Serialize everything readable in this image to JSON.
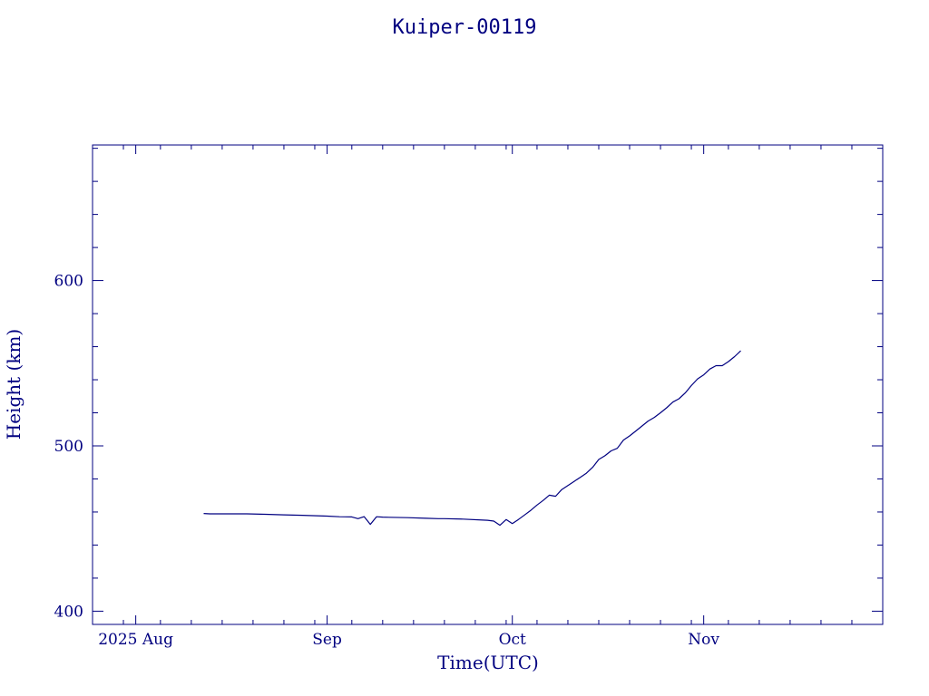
{
  "colors": {
    "ink": "#000080",
    "background": "#ffffff"
  },
  "chart_data": {
    "type": "line",
    "title": "Kuiper-00119",
    "xlabel": "Time(UTC)",
    "ylabel": "Height (km)",
    "x_is_date": true,
    "xlim": [
      "2025-07-25",
      "2025-11-30"
    ],
    "ylim": [
      392,
      682
    ],
    "x_tick_labels": [
      {
        "x": "2025-08-01",
        "label": "2025 Aug"
      },
      {
        "x": "2025-09-01",
        "label": "Sep"
      },
      {
        "x": "2025-10-01",
        "label": "Oct"
      },
      {
        "x": "2025-11-01",
        "label": "Nov"
      }
    ],
    "y_tick_labels": [
      {
        "y": 400,
        "label": "400"
      },
      {
        "y": 500,
        "label": "500"
      },
      {
        "y": 600,
        "label": "600"
      }
    ],
    "y_minor_step": 20,
    "grid": false,
    "series": [
      {
        "x": [
          "2025-08-12",
          "2025-08-13",
          "2025-08-15",
          "2025-08-19",
          "2025-08-22",
          "2025-08-25",
          "2025-08-28",
          "2025-09-01",
          "2025-09-03",
          "2025-09-05",
          "2025-09-06",
          "2025-09-07",
          "2025-09-08",
          "2025-09-09",
          "2025-09-10",
          "2025-09-11",
          "2025-09-14",
          "2025-09-17",
          "2025-09-19",
          "2025-09-20",
          "2025-09-23",
          "2025-09-27",
          "2025-09-28",
          "2025-09-29",
          "2025-09-30",
          "2025-10-01",
          "2025-10-02",
          "2025-10-03",
          "2025-10-04",
          "2025-10-05",
          "2025-10-06",
          "2025-10-07",
          "2025-10-08",
          "2025-10-09",
          "2025-10-10",
          "2025-10-11",
          "2025-10-12",
          "2025-10-13",
          "2025-10-14",
          "2025-10-15",
          "2025-10-16",
          "2025-10-17",
          "2025-10-18",
          "2025-10-19",
          "2025-10-20",
          "2025-10-21",
          "2025-10-22",
          "2025-10-23",
          "2025-10-24",
          "2025-10-25",
          "2025-10-26",
          "2025-10-27",
          "2025-10-28",
          "2025-10-29",
          "2025-10-30",
          "2025-10-31",
          "2025-11-01",
          "2025-11-02",
          "2025-11-03",
          "2025-11-04",
          "2025-11-05",
          "2025-11-06",
          "2025-11-07"
        ],
        "y": [
          459.1,
          458.9,
          458.9,
          458.9,
          458.6,
          458.3,
          458.0,
          457.5,
          457.1,
          457.0,
          456.0,
          457.2,
          452.5,
          457.1,
          456.9,
          456.8,
          456.6,
          456.2,
          456.0,
          456.0,
          455.7,
          455.0,
          454.5,
          452.0,
          455.4,
          453.0,
          455.5,
          458.2,
          461.0,
          464.2,
          467.0,
          470.2,
          469.5,
          473.6,
          476.0,
          478.5,
          481.0,
          483.5,
          487.0,
          491.8,
          494.0,
          497.0,
          498.5,
          503.5,
          506.0,
          509.0,
          512.0,
          515.0,
          517.2,
          520.0,
          523.0,
          526.5,
          528.5,
          532.0,
          536.5,
          540.5,
          543.0,
          546.5,
          548.5,
          548.5,
          551.0,
          554.0,
          557.5
        ]
      }
    ]
  }
}
